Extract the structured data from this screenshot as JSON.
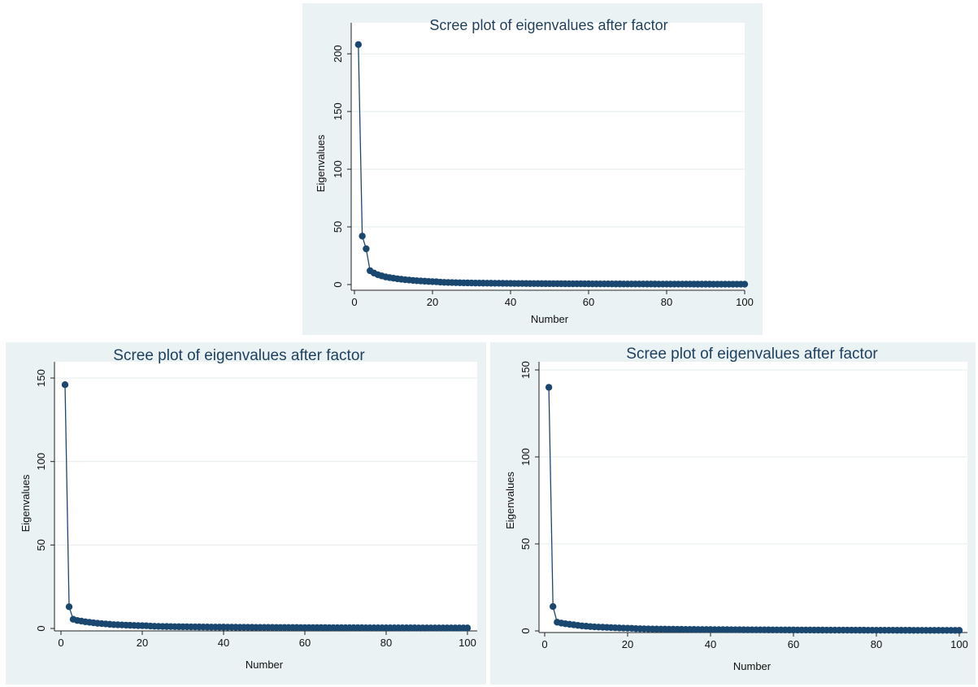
{
  "chart_data": [
    {
      "type": "scatter",
      "connected": true,
      "title": "Scree plot of eigenvalues after factor",
      "xlabel": "Number",
      "ylabel": "Eigenvalues",
      "xlim": [
        0,
        100
      ],
      "ylim": [
        0,
        210
      ],
      "xticks": [
        "0",
        "20",
        "40",
        "60",
        "80",
        "100"
      ],
      "yticks": [
        "0",
        "50",
        "100",
        "150",
        "200"
      ],
      "grid": true,
      "colors": {
        "background": "#eaf2f3",
        "plot": "#ffffff",
        "marker": "#1a476f",
        "title": "#1c3f5e"
      },
      "x_range": [
        1,
        100
      ],
      "leading_values": [
        208,
        42,
        31,
        12,
        10,
        8.5,
        7.5,
        6.6,
        6.0,
        5.5,
        5.0,
        4.6,
        4.2,
        3.9,
        3.6,
        3.3,
        3.1,
        2.9,
        2.7,
        2.5
      ],
      "tail_from": 2.4,
      "tail_to": 0.3
    },
    {
      "type": "scatter",
      "connected": true,
      "title": "Scree plot of eigenvalues after factor",
      "xlabel": "Number",
      "ylabel": "Eigenvalues",
      "xlim": [
        0,
        100
      ],
      "ylim": [
        0,
        150
      ],
      "xticks": [
        "0",
        "20",
        "40",
        "60",
        "80",
        "100"
      ],
      "yticks": [
        "0",
        "50",
        "100",
        "150"
      ],
      "grid": true,
      "colors": {
        "background": "#eaf2f3",
        "plot": "#ffffff",
        "marker": "#1a476f",
        "title": "#1c3f5e"
      },
      "x_range": [
        1,
        100
      ],
      "leading_values": [
        146,
        13,
        5.5,
        4.8,
        4.4,
        4.0,
        3.7,
        3.4,
        3.1,
        2.9,
        2.7,
        2.5,
        2.3,
        2.2,
        2.1,
        2.0,
        1.9,
        1.8,
        1.7,
        1.65
      ],
      "tail_from": 1.6,
      "tail_to": 0.3
    },
    {
      "type": "scatter",
      "connected": true,
      "title": "Scree plot of eigenvalues after factor",
      "xlabel": "Number",
      "ylabel": "Eigenvalues",
      "xlim": [
        0,
        100
      ],
      "ylim": [
        0,
        150
      ],
      "xticks": [
        "0",
        "20",
        "40",
        "60",
        "80",
        "100"
      ],
      "yticks": [
        "0",
        "50",
        "100",
        "150"
      ],
      "grid": true,
      "colors": {
        "background": "#eaf2f3",
        "plot": "#ffffff",
        "marker": "#1a476f",
        "title": "#1c3f5e"
      },
      "x_range": [
        1,
        100
      ],
      "leading_values": [
        140,
        14,
        5.0,
        4.5,
        4.1,
        3.8,
        3.5,
        3.2,
        2.9,
        2.7,
        2.5,
        2.3,
        2.2,
        2.1,
        2.0,
        1.9,
        1.8,
        1.7,
        1.6,
        1.55
      ],
      "tail_from": 1.5,
      "tail_to": 0.3
    }
  ]
}
